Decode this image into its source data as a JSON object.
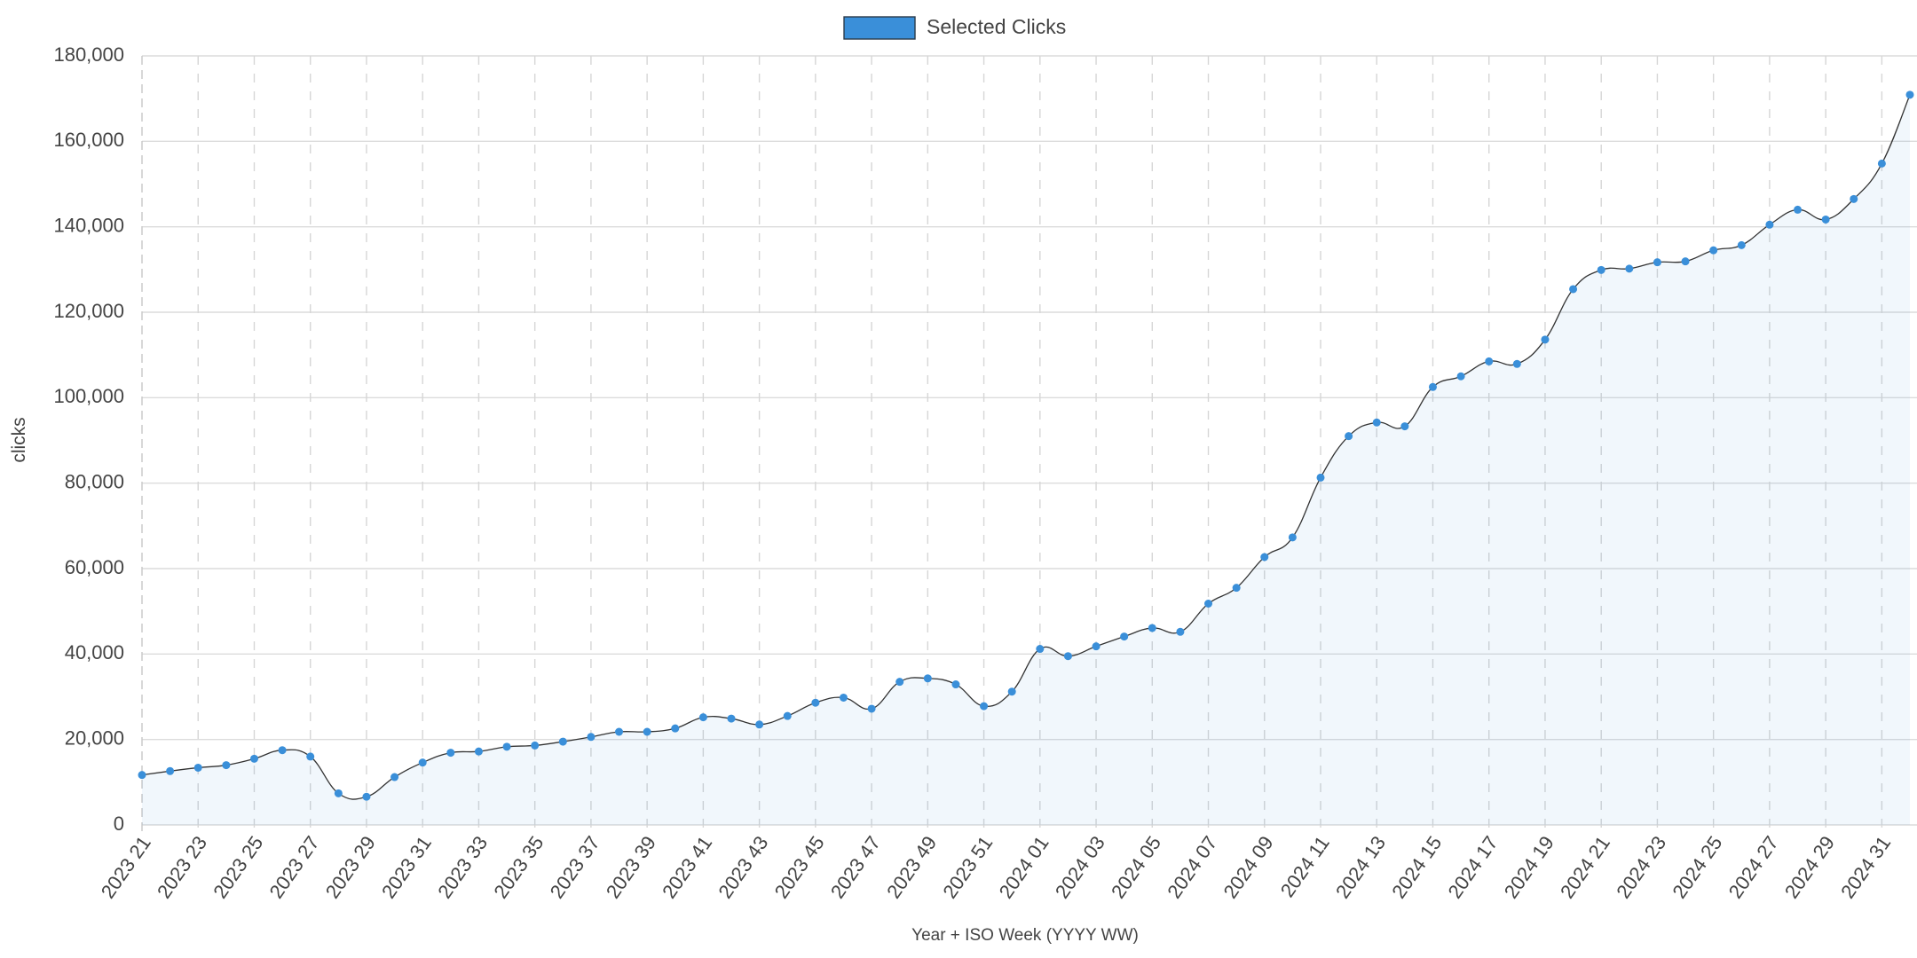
{
  "chart_data": {
    "type": "line",
    "x_label": "Year + ISO Week (YYYY WW)",
    "y_label": "clicks",
    "categories": [
      "2023 21",
      null,
      "2023 23",
      null,
      "2023 25",
      null,
      "2023 27",
      null,
      "2023 29",
      null,
      "2023 31",
      null,
      "2023 33",
      null,
      "2023 35",
      null,
      "2023 37",
      null,
      "2023 39",
      null,
      "2023 41",
      null,
      "2023 43",
      null,
      "2023 45",
      null,
      "2023 47",
      null,
      "2023 49",
      null,
      "2023 51",
      null,
      "2024 01",
      null,
      "2024 03",
      null,
      "2024 05",
      null,
      "2024 07",
      null,
      "2024 09",
      null,
      "2024 11",
      null,
      "2024 13",
      null,
      "2024 15",
      null,
      "2024 17",
      null,
      "2024 19",
      null,
      "2024 21",
      null,
      "2024 23",
      null,
      "2024 25",
      null,
      "2024 27",
      null,
      "2024 29",
      null,
      "2024 31",
      null
    ],
    "series": [
      {
        "name": "Selected Clicks",
        "color": "#3a8fd9",
        "values": [
          11700,
          12600,
          13400,
          14000,
          15500,
          17500,
          16000,
          7400,
          6600,
          11200,
          14600,
          16900,
          17200,
          18300,
          18600,
          19500,
          20600,
          21800,
          21800,
          22600,
          25200,
          24900,
          23500,
          25500,
          28600,
          29800,
          27200,
          33500,
          34300,
          32900,
          27800,
          31200,
          41200,
          39500,
          41800,
          44100,
          46100,
          45200,
          51800,
          55500,
          62700,
          67300,
          81300,
          91000,
          94200,
          93300,
          102500,
          105000,
          108500,
          107900,
          113600,
          125400,
          129900,
          130200,
          131700,
          131900,
          134500,
          135700,
          140500,
          144000,
          141700,
          146500,
          154800,
          170900
        ]
      }
    ],
    "ylim": [
      0,
      180000
    ],
    "yticks": [
      0,
      {
        "value": 20000,
        "label": "20,000"
      },
      {
        "value": 40000,
        "label": "40,000"
      },
      {
        "value": 60000,
        "label": "60,000"
      },
      {
        "value": 80000,
        "label": "80,000"
      },
      {
        "value": 100000,
        "label": "100,000"
      },
      {
        "value": 120000,
        "label": "120,000"
      },
      {
        "value": 140000,
        "label": "140,000"
      },
      {
        "value": 160000,
        "label": "160,000"
      },
      {
        "value": 180000,
        "label": "180,000"
      }
    ],
    "grid": true,
    "legend": "top"
  }
}
